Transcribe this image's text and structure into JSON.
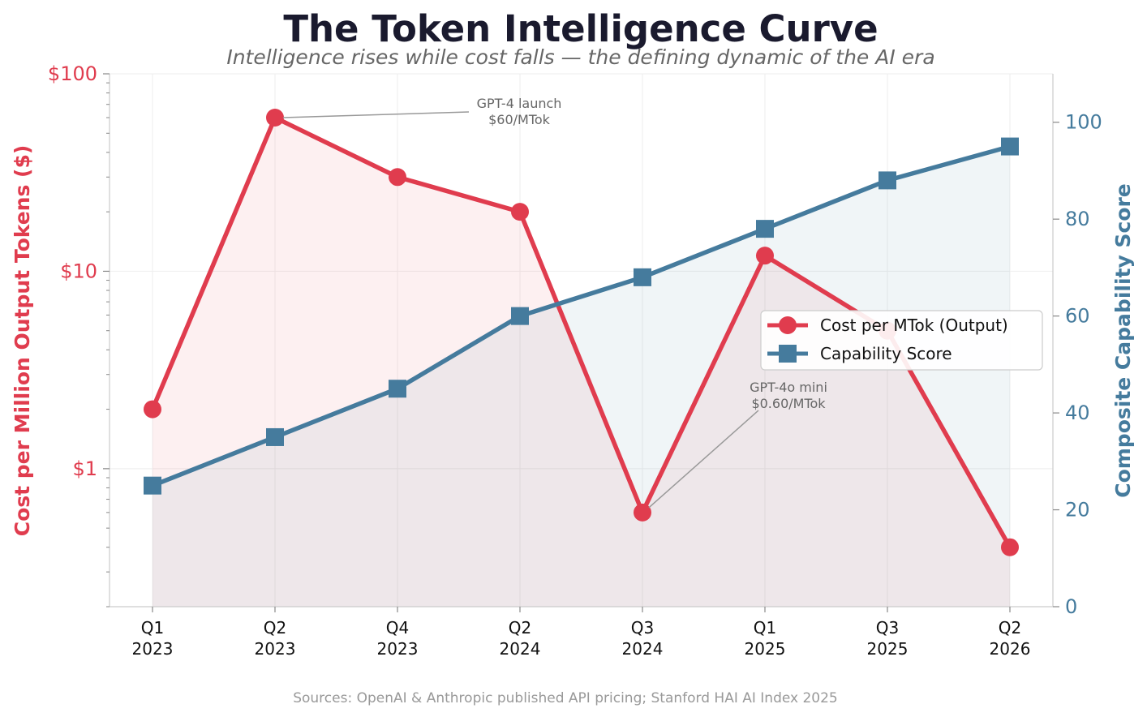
{
  "title": "The Token Intelligence Curve",
  "subtitle": "Intelligence rises while cost falls — the defining dynamic of the AI era",
  "source": "Sources: OpenAI & Anthropic published API pricing; Stanford HAI AI Index 2025",
  "chart_data": {
    "type": "line",
    "categories": [
      [
        "Q1",
        "2023"
      ],
      [
        "Q2",
        "2023"
      ],
      [
        "Q4",
        "2023"
      ],
      [
        "Q2",
        "2024"
      ],
      [
        "Q3",
        "2024"
      ],
      [
        "Q1",
        "2025"
      ],
      [
        "Q3",
        "2025"
      ],
      [
        "Q2",
        "2026"
      ]
    ],
    "series": [
      {
        "name": "Cost per MTok (Output)",
        "axis": "left",
        "color": "#e03c4e",
        "marker": "circle",
        "values": [
          2,
          60,
          30,
          20,
          0.6,
          12,
          5,
          0.4
        ]
      },
      {
        "name": "Capability Score",
        "axis": "right",
        "color": "#457b9d",
        "marker": "square",
        "values": [
          25,
          35,
          45,
          60,
          68,
          78,
          88,
          95
        ]
      }
    ],
    "y_left": {
      "label": "Cost per Million Output Tokens ($)",
      "scale": "log",
      "ylim": [
        0.2,
        100
      ],
      "ticks": [
        1,
        10,
        100
      ],
      "tick_labels": [
        "$1",
        "$10",
        "$100"
      ]
    },
    "y_right": {
      "label": "Composite Capability Score",
      "scale": "linear",
      "ylim": [
        0,
        110
      ],
      "ticks": [
        0,
        20,
        40,
        60,
        80,
        100
      ],
      "tick_labels": [
        "0",
        "20",
        "40",
        "60",
        "80",
        "100"
      ]
    },
    "annotations": [
      {
        "lines": [
          "GPT-4 launch",
          "$60/MTok"
        ],
        "category_index": 1,
        "series": 0
      },
      {
        "lines": [
          "GPT-4o mini",
          "$0.60/MTok"
        ],
        "category_index": 4,
        "series": 0
      }
    ],
    "legend": {
      "position": "center-right"
    },
    "grid": true
  }
}
